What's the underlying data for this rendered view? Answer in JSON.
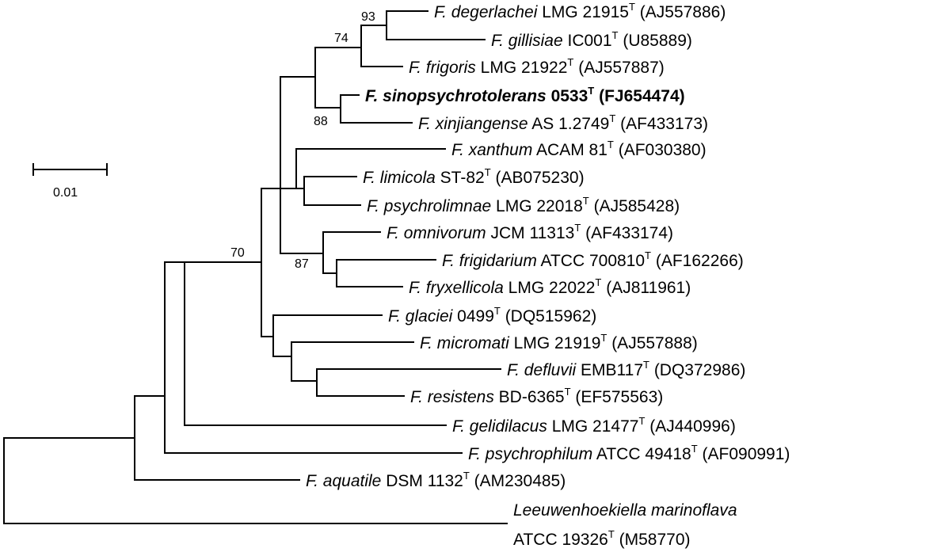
{
  "taxa": [
    {
      "genus": "F. degerlachei",
      "strain": "LMG 21915",
      "type_mark": "T",
      "accession": "(AJ557886)",
      "bold": false
    },
    {
      "genus": "F. gillisiae",
      "strain": "IC001",
      "type_mark": "T",
      "accession": "(U85889)",
      "bold": false
    },
    {
      "genus": "F. frigoris",
      "strain": "LMG 21922",
      "type_mark": "T",
      "accession": "(AJ557887)",
      "bold": false
    },
    {
      "genus": "F. sinopsychrotolerans",
      "strain": "0533",
      "type_mark": "T",
      "accession": "(FJ654474)",
      "bold": true
    },
    {
      "genus": "F. xinjiangense",
      "strain": "AS 1.2749",
      "type_mark": "T",
      "accession": "(AF433173)",
      "bold": false
    },
    {
      "genus": "F. xanthum",
      "strain": "ACAM 81",
      "type_mark": "T",
      "accession": "(AF030380)",
      "bold": false
    },
    {
      "genus": "F. limicola",
      "strain": "ST-82",
      "type_mark": "T",
      "accession": "(AB075230)",
      "bold": false
    },
    {
      "genus": "F. psychrolimnae",
      "strain": "LMG 22018",
      "type_mark": "T",
      "accession": "(AJ585428)",
      "bold": false
    },
    {
      "genus": "F. omnivorum",
      "strain": "JCM 11313",
      "type_mark": "T",
      "accession": "(AF433174)",
      "bold": false
    },
    {
      "genus": "F. frigidarium",
      "strain": "ATCC 700810",
      "type_mark": "T",
      "accession": "(AF162266)",
      "bold": false
    },
    {
      "genus": "F. fryxellicola",
      "strain": "LMG 22022",
      "type_mark": "T",
      "accession": "(AJ811961)",
      "bold": false
    },
    {
      "genus": "F. glaciei",
      "strain": "0499",
      "type_mark": "T",
      "accession": "(DQ515962)",
      "bold": false
    },
    {
      "genus": "F. micromati",
      "strain": "LMG 21919",
      "type_mark": "T",
      "accession": "(AJ557888)",
      "bold": false
    },
    {
      "genus": "F. defluvii",
      "strain": "EMB117",
      "type_mark": "T",
      "accession": "(DQ372986)",
      "bold": false
    },
    {
      "genus": "F. resistens",
      "strain": "BD-6365",
      "type_mark": "T",
      "accession": "(EF575563)",
      "bold": false
    },
    {
      "genus": "F. gelidilacus",
      "strain": "LMG 21477",
      "type_mark": "T",
      "accession": "(AJ440996)",
      "bold": false
    },
    {
      "genus": "F. psychrophilum",
      "strain": "ATCC 49418",
      "type_mark": "T",
      "accession": "(AF090991)",
      "bold": false
    },
    {
      "genus": "F. aquatile",
      "strain": "DSM 1132",
      "type_mark": "T",
      "accession": "(AM230485)",
      "bold": false
    }
  ],
  "outgroup": {
    "genus": "Leeuwenhoekiella marinoflava",
    "strain": "ATCC 19326",
    "type_mark": "T",
    "accession": "(M58770)"
  },
  "bootstrap": {
    "b93": "93",
    "b74": "74",
    "b88": "88",
    "b70": "70",
    "b87": "87"
  },
  "scale_bar": {
    "label": "0.01"
  }
}
